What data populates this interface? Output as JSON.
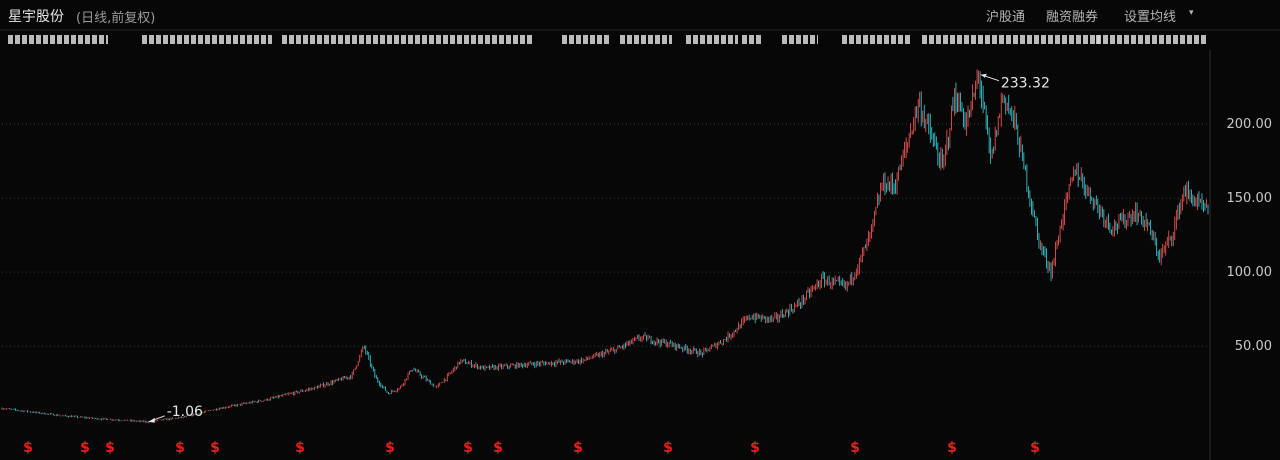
{
  "header": {
    "stock_name": "星宇股份",
    "subtitle": "(日线,前复权)",
    "buttons": [
      "沪股通",
      "融资融券",
      "设置均线"
    ]
  },
  "colors": {
    "background": "#070707",
    "up": "#ff5a5a",
    "down": "#3ad6e0",
    "grid": "#3a3a3a",
    "axis_text": "#c8c8c8",
    "dividend_marker": "#e0241b"
  },
  "chart_data": {
    "type": "candlestick",
    "y_ticks": [
      "200.00",
      "150.00",
      "100.00",
      "50.00"
    ],
    "ylim": [
      -12,
      250
    ],
    "grid": true,
    "max_label": "233.32",
    "min_label": "-1.06",
    "dividend_marker_symbol": "$",
    "dividend_marker_count": 15,
    "price_path_x": [
      0,
      0.02,
      0.05,
      0.08,
      0.12,
      0.15,
      0.18,
      0.22,
      0.26,
      0.29,
      0.3,
      0.31,
      0.32,
      0.33,
      0.34,
      0.36,
      0.37,
      0.38,
      0.4,
      0.44,
      0.48,
      0.51,
      0.53,
      0.56,
      0.58,
      0.6,
      0.62,
      0.64,
      0.66,
      0.68,
      0.7,
      0.71,
      0.72,
      0.73,
      0.74,
      0.75,
      0.76,
      0.78,
      0.79,
      0.8,
      0.81,
      0.82,
      0.83,
      0.84,
      0.85,
      0.86,
      0.87,
      0.88,
      0.89,
      0.9,
      0.92,
      0.94,
      0.95,
      0.96,
      0.97,
      0.98,
      1.0
    ],
    "price_path_y": [
      8,
      6,
      3,
      1,
      -1.06,
      2,
      8,
      14,
      22,
      30,
      50,
      28,
      18,
      22,
      35,
      22,
      30,
      40,
      35,
      38,
      40,
      48,
      56,
      50,
      45,
      55,
      70,
      68,
      78,
      95,
      90,
      105,
      125,
      160,
      158,
      185,
      215,
      170,
      220,
      200,
      233.32,
      175,
      220,
      200,
      160,
      120,
      100,
      140,
      170,
      155,
      130,
      140,
      132,
      110,
      125,
      155,
      140
    ]
  }
}
